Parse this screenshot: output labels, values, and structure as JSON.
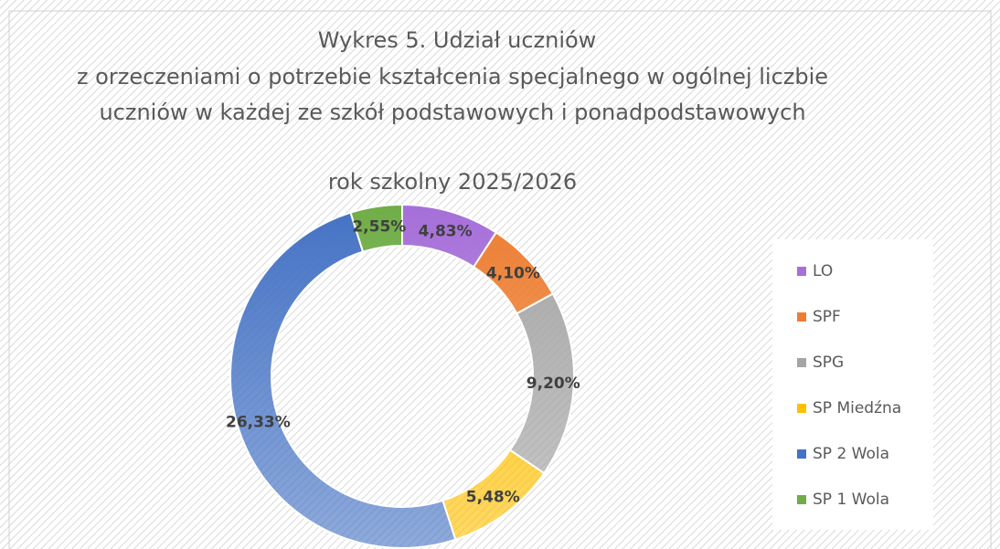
{
  "chart_data": {
    "type": "donut",
    "title": [
      "Wykres 5. Udział uczniów",
      "z orzeczeniami o potrzebie kształcenia specjalnego w ogólnej liczbie",
      "uczniów w każdej ze szkół podstawowych i ponadpodstawowych"
    ],
    "subtitle": "rok szkolny 2025/2026",
    "categories": [
      "LO",
      "SPF",
      "SPG",
      "SP Miedźna",
      "SP 2 Wola",
      "SP 1 Wola"
    ],
    "values": [
      4.83,
      4.1,
      9.2,
      5.48,
      26.33,
      2.55
    ],
    "value_labels": [
      "4,83%",
      "4,10%",
      "9,20%",
      "5,48%",
      "26,33%",
      "2,55%"
    ],
    "colors": [
      "#a66fd9",
      "#ed7d31",
      "#a5a5a5",
      "#ffc000",
      "#4472c4",
      "#70ad47"
    ],
    "legend": "right"
  }
}
